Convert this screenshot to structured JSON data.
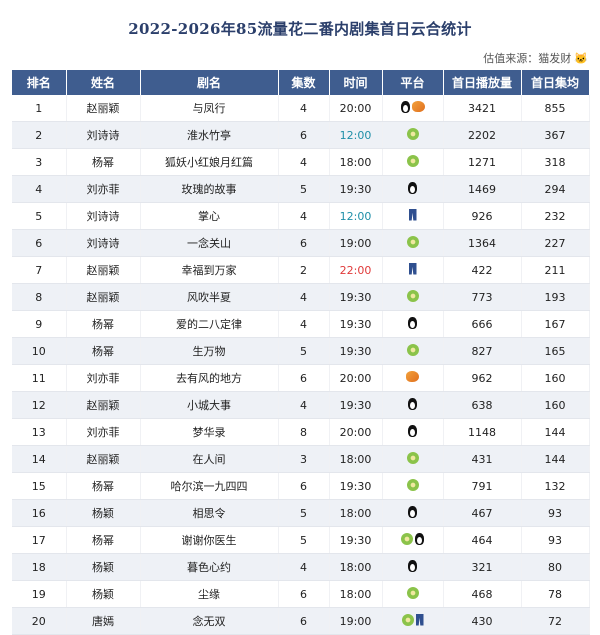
{
  "title": "2022-2026年85流量花二番内剧集首日云合统计",
  "source": "估值来源：猫发财",
  "source_icon": "cat-emoji-icon",
  "colors": {
    "header_bg": "#3f5d8f",
    "row_alt": "#eef1f6",
    "time_cyan": "#1f8fa8",
    "time_red": "#e03a3a"
  },
  "headers": [
    "排名",
    "姓名",
    "剧名",
    "集数",
    "时间",
    "平台",
    "首日播放量",
    "首日集均"
  ],
  "rows": [
    {
      "rank": "1",
      "name": "赵丽颖",
      "drama": "与凤行",
      "eps": "4",
      "time": "20:00",
      "time_color": "",
      "platforms": [
        "penguin-icon",
        "mango-icon"
      ],
      "views": "3421",
      "avg": "855"
    },
    {
      "rank": "2",
      "name": "刘诗诗",
      "drama": "淮水竹亭",
      "eps": "6",
      "time": "12:00",
      "time_color": "cyan",
      "platforms": [
        "kiwi-icon"
      ],
      "views": "2202",
      "avg": "367"
    },
    {
      "rank": "3",
      "name": "杨幂",
      "drama": "狐妖小红娘月红篇",
      "eps": "4",
      "time": "18:00",
      "time_color": "",
      "platforms": [
        "kiwi-icon"
      ],
      "views": "1271",
      "avg": "318"
    },
    {
      "rank": "4",
      "name": "刘亦菲",
      "drama": "玫瑰的故事",
      "eps": "5",
      "time": "19:30",
      "time_color": "",
      "platforms": [
        "penguin-icon"
      ],
      "views": "1469",
      "avg": "294"
    },
    {
      "rank": "5",
      "name": "刘诗诗",
      "drama": "掌心",
      "eps": "4",
      "time": "12:00",
      "time_color": "cyan",
      "platforms": [
        "jeans-icon"
      ],
      "views": "926",
      "avg": "232"
    },
    {
      "rank": "6",
      "name": "刘诗诗",
      "drama": "一念关山",
      "eps": "6",
      "time": "19:00",
      "time_color": "",
      "platforms": [
        "kiwi-icon"
      ],
      "views": "1364",
      "avg": "227"
    },
    {
      "rank": "7",
      "name": "赵丽颖",
      "drama": "幸福到万家",
      "eps": "2",
      "time": "22:00",
      "time_color": "red",
      "platforms": [
        "jeans-icon"
      ],
      "views": "422",
      "avg": "211"
    },
    {
      "rank": "8",
      "name": "赵丽颖",
      "drama": "风吹半夏",
      "eps": "4",
      "time": "19:30",
      "time_color": "",
      "platforms": [
        "kiwi-icon"
      ],
      "views": "773",
      "avg": "193"
    },
    {
      "rank": "9",
      "name": "杨幂",
      "drama": "爱的二八定律",
      "eps": "4",
      "time": "19:30",
      "time_color": "",
      "platforms": [
        "penguin-icon"
      ],
      "views": "666",
      "avg": "167"
    },
    {
      "rank": "10",
      "name": "杨幂",
      "drama": "生万物",
      "eps": "5",
      "time": "19:30",
      "time_color": "",
      "platforms": [
        "kiwi-icon"
      ],
      "views": "827",
      "avg": "165"
    },
    {
      "rank": "11",
      "name": "刘亦菲",
      "drama": "去有风的地方",
      "eps": "6",
      "time": "20:00",
      "time_color": "",
      "platforms": [
        "mango-icon"
      ],
      "views": "962",
      "avg": "160"
    },
    {
      "rank": "12",
      "name": "赵丽颖",
      "drama": "小城大事",
      "eps": "4",
      "time": "19:30",
      "time_color": "",
      "platforms": [
        "penguin-icon"
      ],
      "views": "638",
      "avg": "160"
    },
    {
      "rank": "13",
      "name": "刘亦菲",
      "drama": "梦华录",
      "eps": "8",
      "time": "20:00",
      "time_color": "",
      "platforms": [
        "penguin-icon"
      ],
      "views": "1148",
      "avg": "144"
    },
    {
      "rank": "14",
      "name": "赵丽颖",
      "drama": "在人间",
      "eps": "3",
      "time": "18:00",
      "time_color": "",
      "platforms": [
        "kiwi-icon"
      ],
      "views": "431",
      "avg": "144"
    },
    {
      "rank": "15",
      "name": "杨幂",
      "drama": "哈尔滨一九四四",
      "eps": "6",
      "time": "19:30",
      "time_color": "",
      "platforms": [
        "kiwi-icon"
      ],
      "views": "791",
      "avg": "132"
    },
    {
      "rank": "16",
      "name": "杨颖",
      "drama": "相思令",
      "eps": "5",
      "time": "18:00",
      "time_color": "",
      "platforms": [
        "penguin-icon"
      ],
      "views": "467",
      "avg": "93"
    },
    {
      "rank": "17",
      "name": "杨幂",
      "drama": "谢谢你医生",
      "eps": "5",
      "time": "19:30",
      "time_color": "",
      "platforms": [
        "kiwi-icon",
        "penguin-icon"
      ],
      "views": "464",
      "avg": "93"
    },
    {
      "rank": "18",
      "name": "杨颖",
      "drama": "暮色心约",
      "eps": "4",
      "time": "18:00",
      "time_color": "",
      "platforms": [
        "penguin-icon"
      ],
      "views": "321",
      "avg": "80"
    },
    {
      "rank": "19",
      "name": "杨颖",
      "drama": "尘缘",
      "eps": "6",
      "time": "18:00",
      "time_color": "",
      "platforms": [
        "kiwi-icon"
      ],
      "views": "468",
      "avg": "78"
    },
    {
      "rank": "20",
      "name": "唐嫣",
      "drama": "念无双",
      "eps": "6",
      "time": "19:00",
      "time_color": "",
      "platforms": [
        "kiwi-icon",
        "jeans-icon"
      ],
      "views": "430",
      "avg": "72"
    }
  ]
}
